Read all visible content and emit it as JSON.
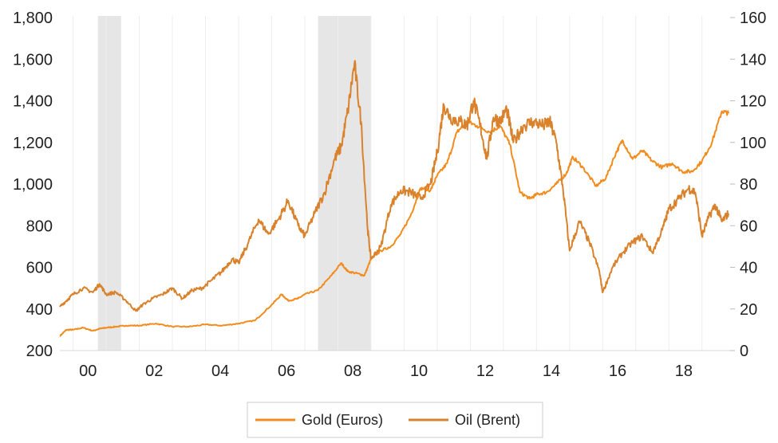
{
  "chart_data": {
    "type": "line",
    "title": "",
    "xlabel": "",
    "ylabel": "",
    "x_tick_labels": [
      "00",
      "02",
      "04",
      "06",
      "08",
      "10",
      "12",
      "14",
      "16",
      "18"
    ],
    "x_tick_years": [
      2000,
      2002,
      2004,
      2006,
      2008,
      2010,
      2012,
      2014,
      2016,
      2018
    ],
    "xlim": [
      1999.6,
      2019.85
    ],
    "y_left": {
      "ylim": [
        200,
        1800
      ],
      "ticks": [
        200,
        400,
        600,
        800,
        1000,
        1200,
        1400,
        1600,
        1800
      ],
      "tick_labels": [
        "200",
        "400",
        "600",
        "800",
        "1,000",
        "1,200",
        "1,400",
        "1,600",
        "1,800"
      ]
    },
    "y_right": {
      "ylim": [
        0,
        160
      ],
      "ticks": [
        0,
        20,
        40,
        60,
        80,
        100,
        120,
        140,
        160
      ],
      "tick_labels": [
        "0",
        "20",
        "40",
        "60",
        "80",
        "100",
        "120",
        "140",
        "160"
      ]
    },
    "grid": "vertical",
    "recession_shading": [
      [
        2000.75,
        2001.45
      ],
      [
        2007.4,
        2009.0
      ]
    ],
    "legend": {
      "position": "bottom"
    },
    "series": [
      {
        "name": "Gold (Euros)",
        "axis": "left",
        "color": "#F28C1E",
        "points": [
          [
            1999.6,
            270
          ],
          [
            1999.8,
            300
          ],
          [
            2000.0,
            300
          ],
          [
            2000.3,
            310
          ],
          [
            2000.6,
            295
          ],
          [
            2000.8,
            305
          ],
          [
            2001.0,
            310
          ],
          [
            2001.3,
            315
          ],
          [
            2001.6,
            320
          ],
          [
            2002.0,
            320
          ],
          [
            2002.5,
            330
          ],
          [
            2003.0,
            315
          ],
          [
            2003.5,
            315
          ],
          [
            2004.0,
            325
          ],
          [
            2004.5,
            320
          ],
          [
            2005.0,
            330
          ],
          [
            2005.5,
            345
          ],
          [
            2006.0,
            420
          ],
          [
            2006.3,
            470
          ],
          [
            2006.5,
            440
          ],
          [
            2006.8,
            450
          ],
          [
            2007.0,
            470
          ],
          [
            2007.4,
            490
          ],
          [
            2007.8,
            560
          ],
          [
            2008.1,
            620
          ],
          [
            2008.3,
            580
          ],
          [
            2008.6,
            570
          ],
          [
            2008.8,
            560
          ],
          [
            2009.0,
            640
          ],
          [
            2009.3,
            680
          ],
          [
            2009.6,
            700
          ],
          [
            2009.9,
            760
          ],
          [
            2010.2,
            850
          ],
          [
            2010.5,
            980
          ],
          [
            2010.8,
            970
          ],
          [
            2011.0,
            1040
          ],
          [
            2011.3,
            1100
          ],
          [
            2011.6,
            1250
          ],
          [
            2011.9,
            1300
          ],
          [
            2012.2,
            1280
          ],
          [
            2012.6,
            1250
          ],
          [
            2012.9,
            1280
          ],
          [
            2013.2,
            1190
          ],
          [
            2013.5,
            960
          ],
          [
            2013.8,
            930
          ],
          [
            2014.0,
            950
          ],
          [
            2014.3,
            960
          ],
          [
            2014.6,
            1000
          ],
          [
            2014.9,
            1050
          ],
          [
            2015.1,
            1130
          ],
          [
            2015.4,
            1080
          ],
          [
            2015.8,
            990
          ],
          [
            2016.1,
            1030
          ],
          [
            2016.4,
            1150
          ],
          [
            2016.6,
            1210
          ],
          [
            2016.9,
            1120
          ],
          [
            2017.2,
            1160
          ],
          [
            2017.5,
            1110
          ],
          [
            2017.8,
            1080
          ],
          [
            2018.1,
            1100
          ],
          [
            2018.4,
            1060
          ],
          [
            2018.7,
            1060
          ],
          [
            2019.0,
            1110
          ],
          [
            2019.3,
            1200
          ],
          [
            2019.6,
            1350
          ],
          [
            2019.8,
            1340
          ]
        ]
      },
      {
        "name": "Oil (Brent)",
        "axis": "right",
        "color": "#D9822B",
        "points": [
          [
            1999.6,
            21
          ],
          [
            1999.8,
            24
          ],
          [
            2000.0,
            27
          ],
          [
            2000.3,
            30
          ],
          [
            2000.6,
            28
          ],
          [
            2000.8,
            32
          ],
          [
            2001.0,
            27
          ],
          [
            2001.3,
            28
          ],
          [
            2001.6,
            24
          ],
          [
            2001.9,
            19
          ],
          [
            2002.1,
            22
          ],
          [
            2002.4,
            25
          ],
          [
            2002.7,
            27
          ],
          [
            2003.0,
            30
          ],
          [
            2003.3,
            25
          ],
          [
            2003.6,
            29
          ],
          [
            2003.9,
            30
          ],
          [
            2004.2,
            34
          ],
          [
            2004.5,
            38
          ],
          [
            2004.8,
            44
          ],
          [
            2005.0,
            42
          ],
          [
            2005.3,
            52
          ],
          [
            2005.6,
            63
          ],
          [
            2005.9,
            56
          ],
          [
            2006.2,
            63
          ],
          [
            2006.5,
            72
          ],
          [
            2006.8,
            60
          ],
          [
            2007.0,
            55
          ],
          [
            2007.3,
            66
          ],
          [
            2007.6,
            76
          ],
          [
            2007.9,
            92
          ],
          [
            2008.1,
            98
          ],
          [
            2008.3,
            115
          ],
          [
            2008.5,
            138
          ],
          [
            2008.7,
            110
          ],
          [
            2008.9,
            58
          ],
          [
            2009.0,
            44
          ],
          [
            2009.3,
            50
          ],
          [
            2009.6,
            70
          ],
          [
            2009.9,
            77
          ],
          [
            2010.2,
            76
          ],
          [
            2010.5,
            73
          ],
          [
            2010.8,
            80
          ],
          [
            2011.0,
            95
          ],
          [
            2011.2,
            118
          ],
          [
            2011.4,
            112
          ],
          [
            2011.7,
            110
          ],
          [
            2011.9,
            108
          ],
          [
            2012.1,
            120
          ],
          [
            2012.3,
            108
          ],
          [
            2012.5,
            92
          ],
          [
            2012.7,
            112
          ],
          [
            2012.9,
            110
          ],
          [
            2013.1,
            116
          ],
          [
            2013.3,
            100
          ],
          [
            2013.6,
            108
          ],
          [
            2013.9,
            110
          ],
          [
            2014.2,
            108
          ],
          [
            2014.4,
            110
          ],
          [
            2014.6,
            100
          ],
          [
            2014.8,
            78
          ],
          [
            2015.0,
            48
          ],
          [
            2015.3,
            62
          ],
          [
            2015.6,
            52
          ],
          [
            2015.9,
            38
          ],
          [
            2016.0,
            28
          ],
          [
            2016.3,
            40
          ],
          [
            2016.6,
            47
          ],
          [
            2016.9,
            52
          ],
          [
            2017.2,
            55
          ],
          [
            2017.5,
            47
          ],
          [
            2017.8,
            58
          ],
          [
            2018.0,
            68
          ],
          [
            2018.3,
            73
          ],
          [
            2018.6,
            78
          ],
          [
            2018.8,
            76
          ],
          [
            2019.0,
            55
          ],
          [
            2019.2,
            64
          ],
          [
            2019.4,
            70
          ],
          [
            2019.6,
            62
          ],
          [
            2019.8,
            66
          ]
        ]
      }
    ]
  }
}
